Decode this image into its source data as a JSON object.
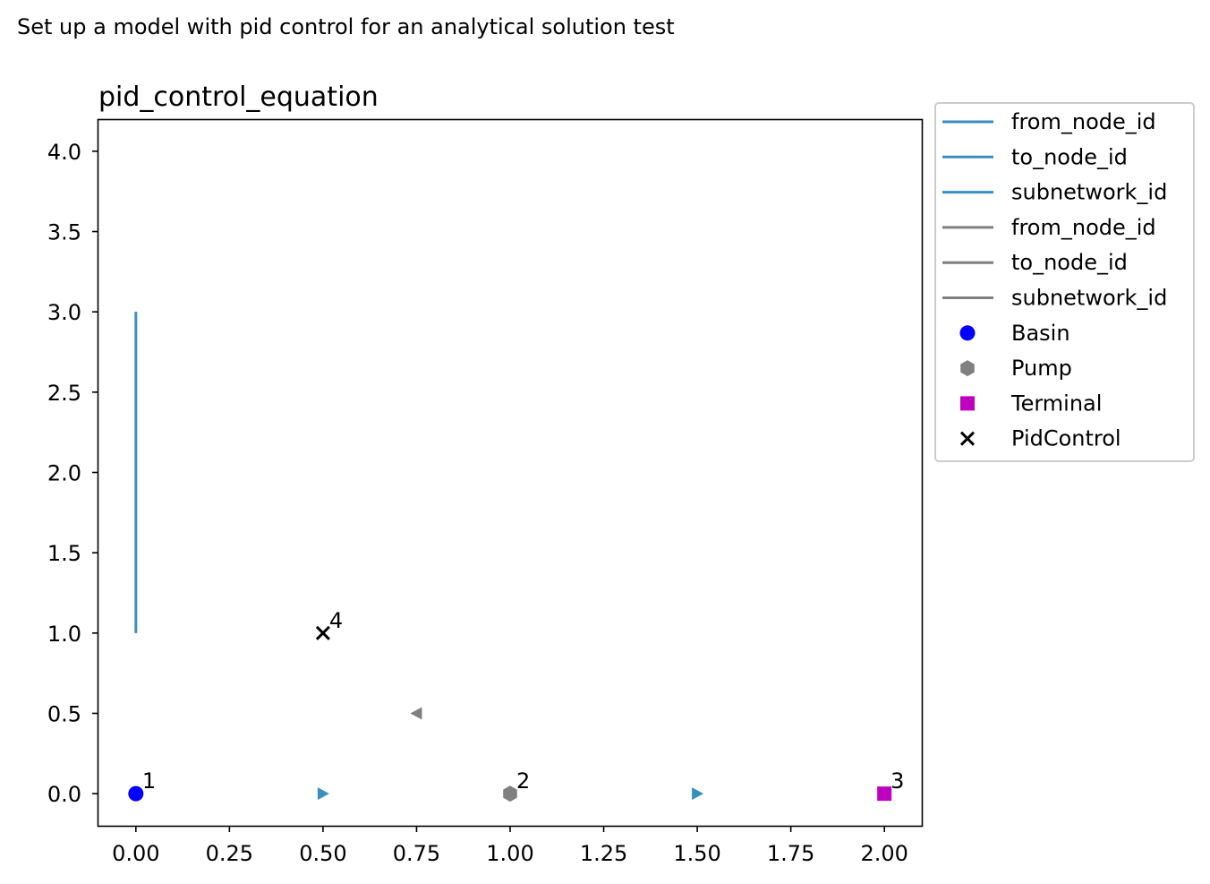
{
  "suptitle": "Set up a model with pid control for an analytical solution test",
  "chart_data": {
    "type": "scatter",
    "title": "pid_control_equation",
    "xlabel": "",
    "ylabel": "",
    "xlim": [
      -0.1,
      2.1
    ],
    "ylim": [
      -0.2,
      4.2
    ],
    "xticks": [
      0.0,
      0.25,
      0.5,
      0.75,
      1.0,
      1.25,
      1.5,
      1.75,
      2.0
    ],
    "xtick_labels": [
      "0.00",
      "0.25",
      "0.50",
      "0.75",
      "1.00",
      "1.25",
      "1.50",
      "1.75",
      "2.00"
    ],
    "yticks": [
      0.0,
      0.5,
      1.0,
      1.5,
      2.0,
      2.5,
      3.0,
      3.5,
      4.0
    ],
    "ytick_labels": [
      "0.0",
      "0.5",
      "1.0",
      "1.5",
      "2.0",
      "2.5",
      "3.0",
      "3.5",
      "4.0"
    ],
    "grid": false,
    "legend_position": "outside upper right",
    "colors": {
      "flow_link": "#3a8fbf",
      "control_link": "#808080",
      "basin": "#0000ff",
      "pump": "#808080",
      "terminal": "#bf00bf",
      "pid_control": "#000000",
      "axes": "#000000"
    },
    "lines": [
      {
        "group": "flow",
        "x": [
          0.0,
          0.0
        ],
        "y": [
          1.0,
          3.0
        ]
      }
    ],
    "arrows": [
      {
        "group": "flow",
        "x": 0.5,
        "y": 0.0,
        "direction": "right"
      },
      {
        "group": "flow",
        "x": 1.5,
        "y": 0.0,
        "direction": "right"
      },
      {
        "group": "control",
        "x": 0.75,
        "y": 0.5,
        "direction": "left"
      }
    ],
    "nodes": [
      {
        "type": "Basin",
        "id": "1",
        "x": 0.0,
        "y": 0.0,
        "marker": "circle"
      },
      {
        "type": "Pump",
        "id": "2",
        "x": 1.0,
        "y": 0.0,
        "marker": "hexagon"
      },
      {
        "type": "Terminal",
        "id": "3",
        "x": 2.0,
        "y": 0.0,
        "marker": "square"
      },
      {
        "type": "PidControl",
        "id": "4",
        "x": 0.5,
        "y": 1.0,
        "marker": "x"
      }
    ],
    "legend": [
      {
        "label": "from_node_id",
        "kind": "line",
        "colorKey": "flow_link"
      },
      {
        "label": "to_node_id",
        "kind": "line",
        "colorKey": "flow_link"
      },
      {
        "label": "subnetwork_id",
        "kind": "line",
        "colorKey": "flow_link"
      },
      {
        "label": "from_node_id",
        "kind": "line",
        "colorKey": "control_link"
      },
      {
        "label": "to_node_id",
        "kind": "line",
        "colorKey": "control_link"
      },
      {
        "label": "subnetwork_id",
        "kind": "line",
        "colorKey": "control_link"
      },
      {
        "label": "Basin",
        "kind": "circle",
        "colorKey": "basin"
      },
      {
        "label": "Pump",
        "kind": "hexagon",
        "colorKey": "pump"
      },
      {
        "label": "Terminal",
        "kind": "square",
        "colorKey": "terminal"
      },
      {
        "label": "PidControl",
        "kind": "x",
        "colorKey": "pid_control"
      }
    ]
  }
}
